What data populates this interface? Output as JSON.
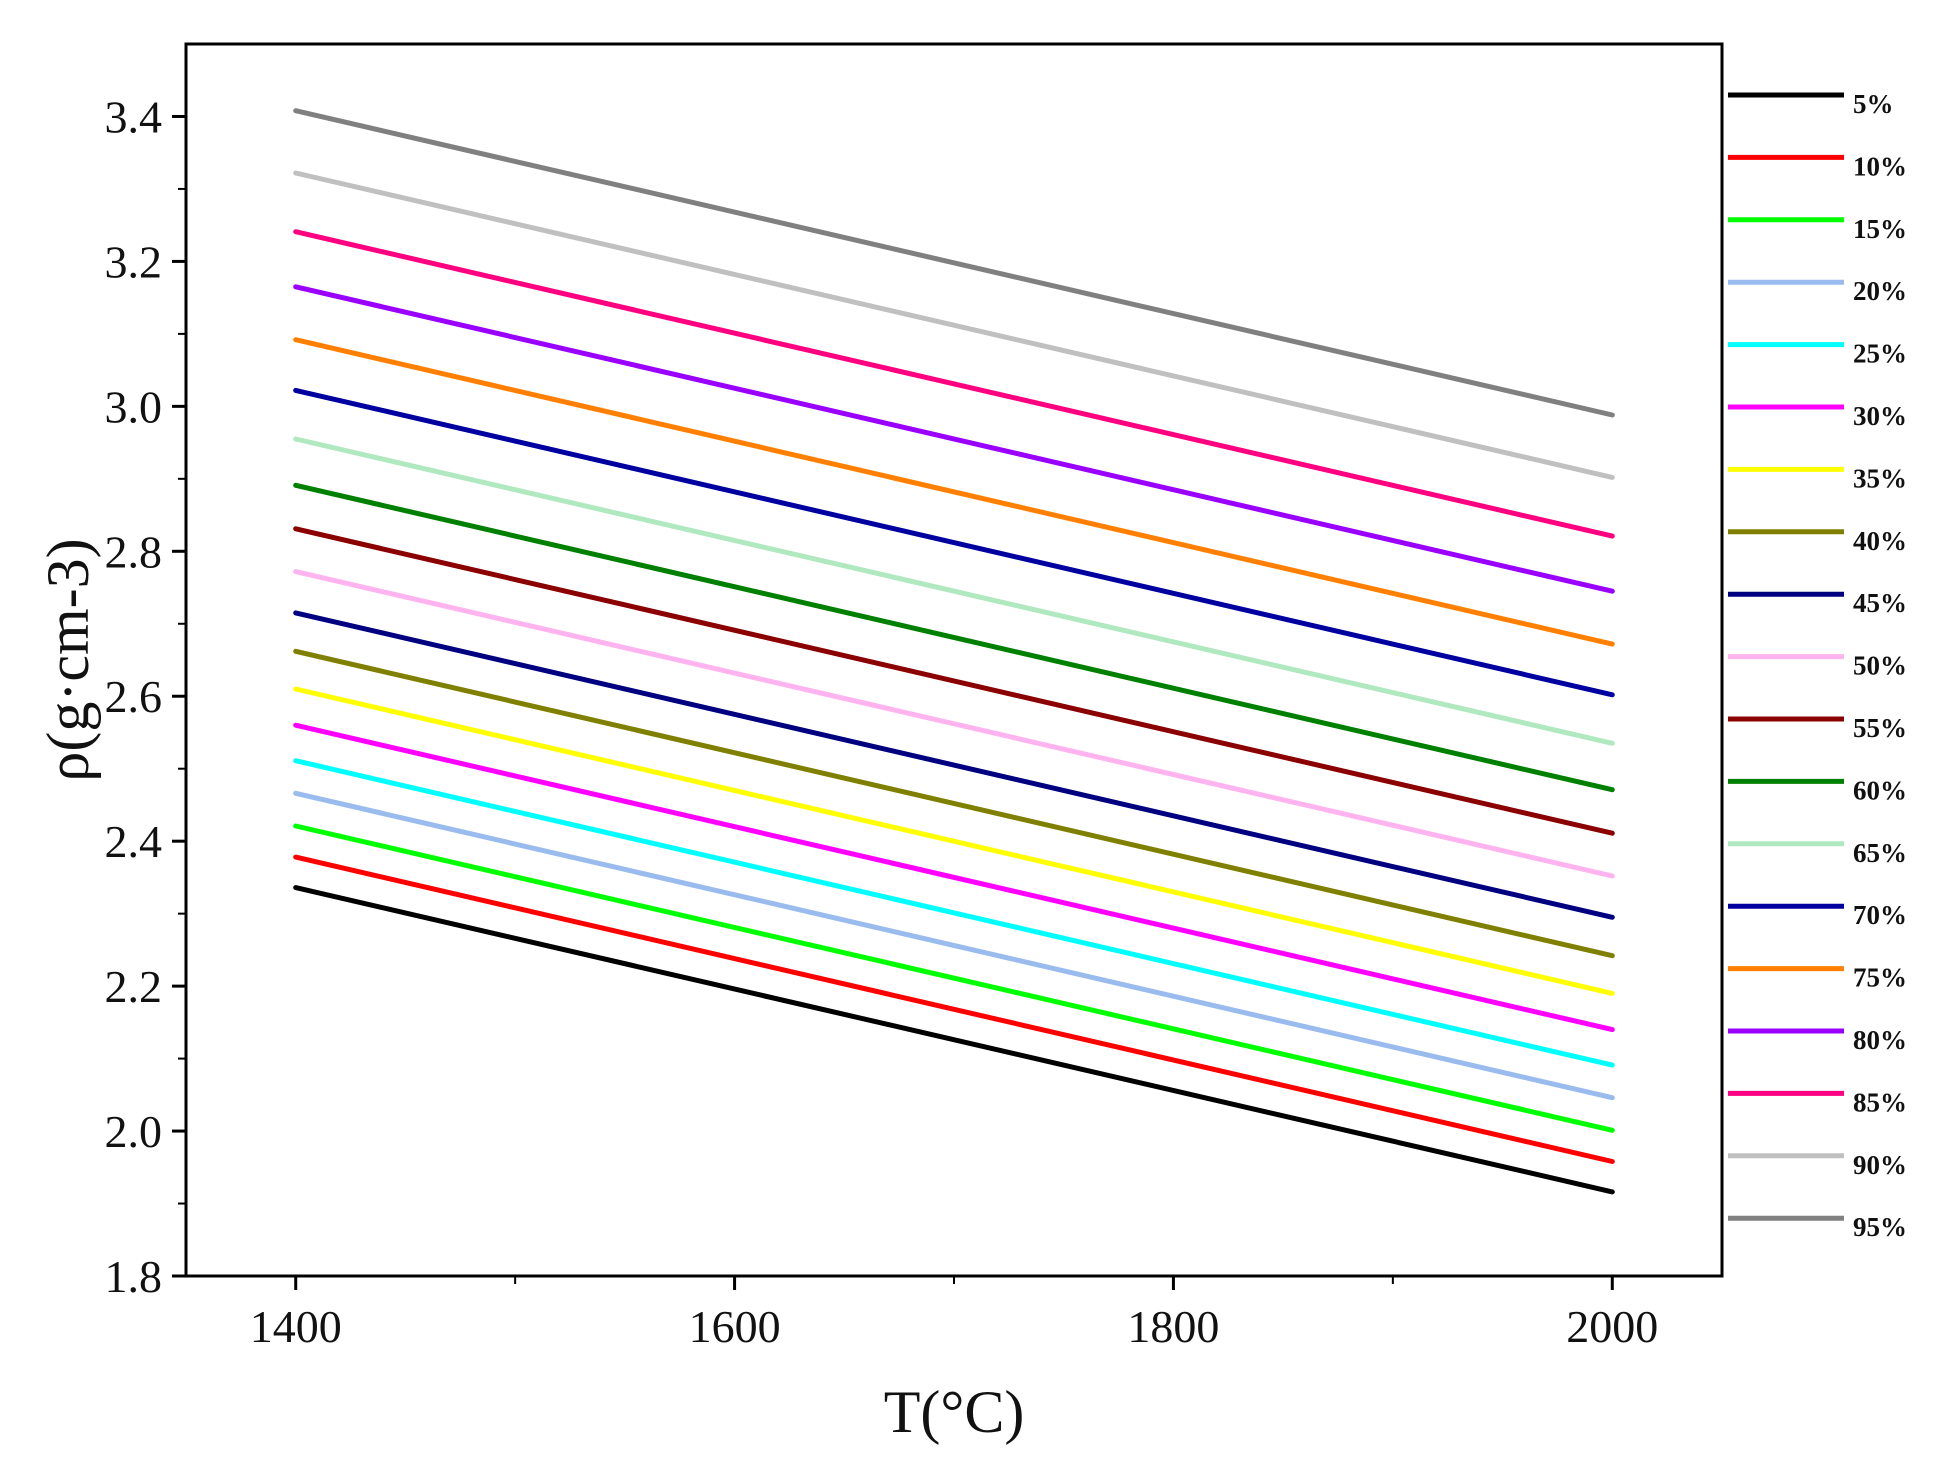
{
  "chart_data": {
    "type": "line",
    "xlabel": "T(°C)",
    "ylabel": "ρ(g·cm-3)",
    "xlim": [
      1350,
      2050
    ],
    "ylim": [
      1.8,
      3.5
    ],
    "xticks": [
      1400,
      1600,
      1800,
      2000
    ],
    "xtick_labels": [
      "1400",
      "1600",
      "1800",
      "2000"
    ],
    "yticks": [
      1.8,
      2.0,
      2.2,
      2.4,
      2.6,
      2.8,
      3.0,
      3.2,
      3.4
    ],
    "ytick_labels": [
      "1.8",
      "2.0",
      "2.2",
      "2.4",
      "2.6",
      "2.8",
      "3.0",
      "3.2",
      "3.4"
    ],
    "x": [
      1400,
      2000
    ],
    "grid": false,
    "legend_position": "right",
    "series": [
      {
        "name": "5%",
        "color": "#000000",
        "values": [
          2.336,
          1.916
        ]
      },
      {
        "name": "10%",
        "color": "#ff0000",
        "values": [
          2.378,
          1.958
        ]
      },
      {
        "name": "15%",
        "color": "#00ff00",
        "values": [
          2.421,
          2.001
        ]
      },
      {
        "name": "20%",
        "color": "#99bbee",
        "values": [
          2.466,
          2.046
        ]
      },
      {
        "name": "25%",
        "color": "#00ffff",
        "values": [
          2.511,
          2.091
        ]
      },
      {
        "name": "30%",
        "color": "#ff00ff",
        "values": [
          2.56,
          2.14
        ]
      },
      {
        "name": "35%",
        "color": "#ffff00",
        "values": [
          2.61,
          2.19
        ]
      },
      {
        "name": "40%",
        "color": "#808000",
        "values": [
          2.662,
          2.242
        ]
      },
      {
        "name": "45%",
        "color": "#000080",
        "values": [
          2.715,
          2.295
        ]
      },
      {
        "name": "50%",
        "color": "#ffb4f0",
        "values": [
          2.772,
          2.352
        ]
      },
      {
        "name": "55%",
        "color": "#8b0000",
        "values": [
          2.831,
          2.411
        ]
      },
      {
        "name": "60%",
        "color": "#008000",
        "values": [
          2.891,
          2.471
        ]
      },
      {
        "name": "65%",
        "color": "#b0e8c0",
        "values": [
          2.955,
          2.535
        ]
      },
      {
        "name": "70%",
        "color": "#0000a0",
        "values": [
          3.022,
          2.602
        ]
      },
      {
        "name": "75%",
        "color": "#ff8000",
        "values": [
          3.092,
          2.672
        ]
      },
      {
        "name": "80%",
        "color": "#9900ff",
        "values": [
          3.165,
          2.745
        ]
      },
      {
        "name": "85%",
        "color": "#ff0080",
        "values": [
          3.241,
          2.821
        ]
      },
      {
        "name": "90%",
        "color": "#c0c0c0",
        "values": [
          3.322,
          2.902
        ]
      },
      {
        "name": "95%",
        "color": "#808080",
        "values": [
          3.408,
          2.988
        ]
      }
    ]
  }
}
